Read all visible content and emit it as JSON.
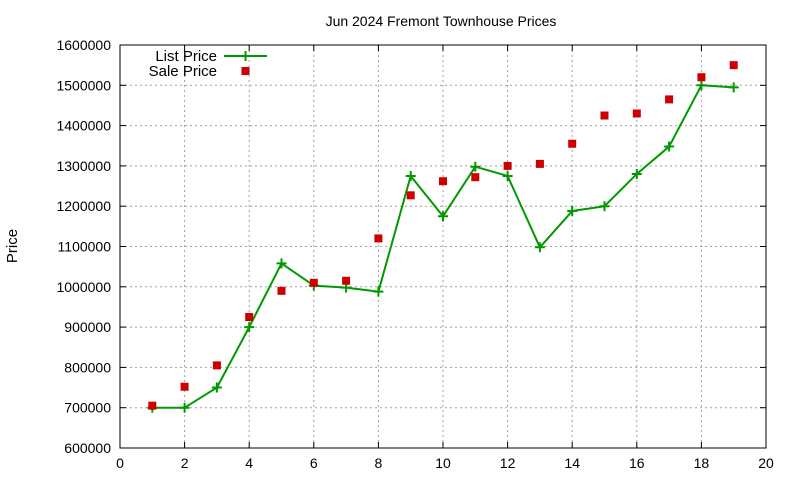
{
  "chart_data": {
    "type": "line",
    "title": "Jun 2024 Fremont Townhouse Prices",
    "xlabel": "",
    "ylabel": "Price",
    "xlim": [
      0,
      20
    ],
    "ylim": [
      600000,
      1600000
    ],
    "xticks": [
      0,
      2,
      4,
      6,
      8,
      10,
      12,
      14,
      16,
      18,
      20
    ],
    "yticks": [
      600000,
      700000,
      800000,
      900000,
      1000000,
      1100000,
      1200000,
      1300000,
      1400000,
      1500000,
      1600000
    ],
    "grid": true,
    "legend_position": "top-left",
    "series": [
      {
        "name": "List Price",
        "style": "line-with-plus-markers",
        "color": "#009900",
        "x": [
          1,
          2,
          3,
          4,
          5,
          6,
          7,
          8,
          9,
          10,
          11,
          12,
          13,
          14,
          15,
          16,
          17,
          18,
          19
        ],
        "values": [
          700000,
          700000,
          750000,
          900000,
          1058000,
          1003000,
          998000,
          988000,
          1275000,
          1175000,
          1298000,
          1275000,
          1098000,
          1188000,
          1200000,
          1280000,
          1348000,
          1500000,
          1495000
        ]
      },
      {
        "name": "Sale Price",
        "style": "square-markers",
        "color": "#cc0000",
        "x": [
          1,
          2,
          3,
          4,
          5,
          6,
          7,
          8,
          9,
          10,
          11,
          12,
          13,
          14,
          15,
          16,
          17,
          18,
          19
        ],
        "values": [
          705000,
          752000,
          805000,
          925000,
          990000,
          1010000,
          1015000,
          1120000,
          1227000,
          1262000,
          1272000,
          1300000,
          1305000,
          1355000,
          1425000,
          1430000,
          1465000,
          1520000,
          1550000
        ]
      }
    ]
  }
}
